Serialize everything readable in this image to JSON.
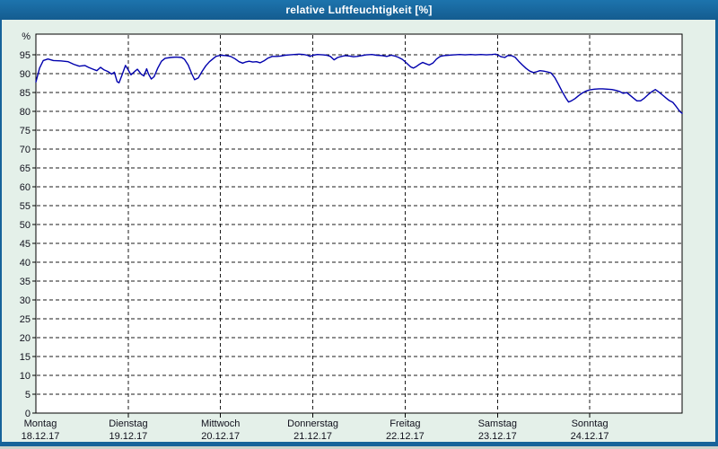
{
  "window": {
    "title_bar": {
      "title": "relative Luftfeuchtigkeit [%]"
    },
    "colors": {
      "title_bar_bg": "#17639A",
      "title_text": "#FFFFFF",
      "window_border": "#17639A",
      "content_bg": "#E4F0E9",
      "plot_bg": "#FFFFFF",
      "grid": "#1B1B1B",
      "axis": "#000000",
      "line": "#0000AD",
      "tick_text": "#10101C",
      "outer_strip": "#CDD2CB"
    }
  },
  "chart_data": {
    "type": "line",
    "title": "relative Luftfeuchtigkeit [%]",
    "ylabel": "relative Luftfeuchtigkeit",
    "y_unit_label": "%",
    "ylim": [
      0,
      100.5
    ],
    "y_tick_step": 5,
    "y_ticks": [
      0,
      5,
      10,
      15,
      20,
      25,
      30,
      35,
      40,
      45,
      50,
      55,
      60,
      65,
      70,
      75,
      80,
      85,
      90,
      95
    ],
    "grid": "dashed",
    "legend_position": "none",
    "x_range_days": [
      0,
      7
    ],
    "x_axis_days": [
      {
        "weekday": "Montag",
        "date": "18.12.17"
      },
      {
        "weekday": "Dienstag",
        "date": "19.12.17"
      },
      {
        "weekday": "Mittwoch",
        "date": "20.12.17"
      },
      {
        "weekday": "Donnerstag",
        "date": "21.12.17"
      },
      {
        "weekday": "Freitag",
        "date": "22.12.17"
      },
      {
        "weekday": "Samstag",
        "date": "23.12.17"
      },
      {
        "weekday": "Sonntag",
        "date": "24.12.17"
      }
    ],
    "series": [
      {
        "name": "relative Luftfeuchtigkeit [%]",
        "color": "#0000AD",
        "x_days": [
          0.0,
          0.04,
          0.08,
          0.13,
          0.19,
          0.27,
          0.35,
          0.41,
          0.47,
          0.53,
          0.57,
          0.62,
          0.66,
          0.7,
          0.74,
          0.78,
          0.82,
          0.85,
          0.88,
          0.9,
          0.93,
          0.97,
          1.0,
          1.03,
          1.07,
          1.1,
          1.14,
          1.17,
          1.2,
          1.22,
          1.25,
          1.28,
          1.32,
          1.36,
          1.4,
          1.46,
          1.52,
          1.58,
          1.61,
          1.65,
          1.69,
          1.72,
          1.76,
          1.8,
          1.84,
          1.88,
          1.92,
          1.95,
          2.0,
          2.06,
          2.11,
          2.16,
          2.2,
          2.24,
          2.27,
          2.31,
          2.35,
          2.39,
          2.43,
          2.47,
          2.51,
          2.56,
          2.61,
          2.65,
          2.7,
          2.75,
          2.8,
          2.85,
          2.9,
          2.94,
          2.97,
          3.0,
          3.05,
          3.11,
          3.15,
          3.19,
          3.23,
          3.27,
          3.31,
          3.35,
          3.4,
          3.44,
          3.48,
          3.53,
          3.58,
          3.64,
          3.69,
          3.75,
          3.8,
          3.85,
          3.89,
          3.93,
          3.97,
          4.0,
          4.03,
          4.06,
          4.09,
          4.12,
          4.16,
          4.19,
          4.22,
          4.26,
          4.3,
          4.34,
          4.38,
          4.42,
          4.47,
          4.53,
          4.59,
          4.65,
          4.71,
          4.76,
          4.82,
          4.88,
          4.94,
          4.98,
          5.0,
          5.04,
          5.08,
          5.11,
          5.15,
          5.19,
          5.23,
          5.27,
          5.31,
          5.35,
          5.39,
          5.42,
          5.46,
          5.5,
          5.54,
          5.58,
          5.62,
          5.66,
          5.7,
          5.74,
          5.77,
          5.8,
          5.84,
          5.88,
          5.92,
          5.96,
          6.0,
          6.05,
          6.1,
          6.14,
          6.19,
          6.24,
          6.28,
          6.32,
          6.36,
          6.4,
          6.44,
          6.48,
          6.51,
          6.55,
          6.59,
          6.63,
          6.67,
          6.71,
          6.75,
          6.79,
          6.83,
          6.86,
          6.9,
          6.93,
          6.96,
          6.98,
          7.0
        ],
        "values": [
          87.8,
          91.5,
          93.5,
          93.9,
          93.5,
          93.4,
          93.2,
          92.5,
          92.0,
          92.2,
          91.7,
          91.2,
          90.8,
          91.7,
          91.0,
          90.6,
          89.9,
          90.4,
          87.9,
          87.6,
          89.5,
          92.2,
          91.0,
          89.7,
          90.6,
          91.2,
          89.9,
          89.4,
          91.3,
          89.9,
          88.6,
          89.2,
          91.5,
          93.3,
          94.1,
          94.3,
          94.4,
          94.3,
          93.8,
          92.3,
          89.9,
          88.4,
          88.9,
          90.6,
          92.1,
          93.2,
          94.0,
          94.6,
          94.9,
          94.8,
          94.6,
          93.9,
          93.2,
          92.8,
          93.1,
          93.3,
          93.1,
          93.2,
          92.9,
          93.4,
          94.1,
          94.6,
          94.6,
          94.7,
          94.9,
          95.0,
          95.1,
          95.2,
          95.1,
          94.9,
          94.6,
          94.9,
          95.1,
          95.0,
          94.9,
          94.6,
          93.7,
          94.3,
          94.6,
          94.8,
          94.7,
          94.5,
          94.6,
          94.8,
          95.0,
          95.1,
          94.9,
          94.8,
          94.6,
          94.9,
          94.7,
          94.3,
          93.8,
          93.2,
          92.5,
          91.8,
          91.5,
          91.9,
          92.6,
          93.0,
          92.7,
          92.3,
          92.8,
          93.9,
          94.6,
          94.8,
          94.9,
          95.0,
          95.1,
          95.0,
          95.1,
          95.0,
          95.1,
          95.0,
          95.1,
          95.2,
          95.0,
          94.5,
          94.3,
          94.8,
          94.8,
          94.4,
          93.3,
          92.3,
          91.4,
          90.7,
          90.3,
          90.5,
          90.8,
          90.7,
          90.5,
          90.2,
          89.0,
          87.2,
          85.3,
          83.6,
          82.5,
          82.8,
          83.4,
          84.2,
          84.9,
          85.4,
          85.7,
          85.9,
          86.0,
          86.0,
          85.9,
          85.8,
          85.6,
          85.3,
          84.8,
          85.0,
          84.2,
          83.4,
          82.8,
          82.8,
          83.5,
          84.4,
          85.2,
          85.8,
          85.1,
          84.3,
          83.5,
          82.9,
          82.4,
          81.5,
          80.5,
          79.9,
          79.5
        ]
      }
    ]
  }
}
